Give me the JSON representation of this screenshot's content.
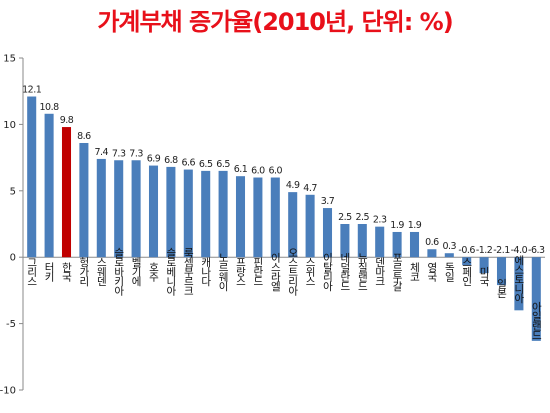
{
  "chart_data": {
    "type": "bar",
    "title": "가계부채 증가율(2010년, 단위: %)",
    "xlabel": "",
    "ylabel": "",
    "ylim": [
      -10,
      15
    ],
    "yticks": [
      15,
      10,
      5,
      0,
      -5,
      -10
    ],
    "grid": false,
    "legend": "none",
    "colors": {
      "default": "#4a7ebb",
      "highlight": "#c00000",
      "title": "#e8101a",
      "axis": "#8a8a8a"
    },
    "highlight_category": "한국",
    "categories": [
      "그리스",
      "터키",
      "한국",
      "헝가리",
      "스웨덴",
      "슬로바키아",
      "벨기에",
      "호주",
      "슬로베니아",
      "룩셈부르크",
      "캐나다",
      "노르웨이",
      "프랑스",
      "핀란드",
      "이스라엘",
      "오스트리아",
      "스위스",
      "이탈리아",
      "네덜란드",
      "뉴질랜드",
      "덴마크",
      "포르투갈",
      "체코",
      "영국",
      "독일",
      "스페인",
      "미국",
      "일본",
      "에스토니아",
      "아일랜드"
    ],
    "values": [
      12.1,
      10.8,
      9.8,
      8.6,
      7.4,
      7.3,
      7.3,
      6.9,
      6.8,
      6.6,
      6.5,
      6.5,
      6.1,
      6.0,
      6.0,
      4.9,
      4.7,
      3.7,
      2.5,
      2.5,
      2.3,
      1.9,
      1.9,
      0.6,
      0.3,
      -0.6,
      -1.2,
      -2.1,
      -4.0,
      -6.3
    ]
  }
}
